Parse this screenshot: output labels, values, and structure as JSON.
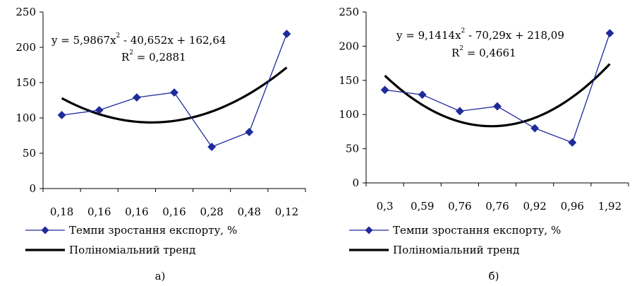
{
  "chart_data": [
    {
      "type": "line",
      "caption": "а)",
      "categories": [
        "0,18",
        "0,16",
        "0,16",
        "0,16",
        "0,28",
        "0,48",
        "0,12"
      ],
      "series": [
        {
          "name": "Темпи зростання експорту, %",
          "values": [
            104,
            111,
            129,
            136,
            59,
            80,
            219
          ],
          "color": "#1f2a9c",
          "marker": "diamond"
        },
        {
          "name": "Поліноміальний тренд",
          "trend": "polynomial",
          "coeffs": [
            5.9867,
            -40.652,
            162.64
          ],
          "color": "#000000"
        }
      ],
      "equation": {
        "line1": "y = 5,9867x",
        "exp1": "2",
        "line1b": " - 40,652x + 162,64",
        "r2_label": "R",
        "exp2": "2",
        "r2_value": " = 0,2881"
      },
      "ylim": [
        0,
        250
      ],
      "yticks": [
        "0",
        "50",
        "100",
        "150",
        "200",
        "250"
      ],
      "xlabel": "",
      "ylabel": "",
      "grid": false,
      "legend_position": "bottom"
    },
    {
      "type": "line",
      "caption": "б)",
      "categories": [
        "0,3",
        "0,59",
        "0,76",
        "0,76",
        "0,92",
        "0,96",
        "1,92"
      ],
      "series": [
        {
          "name": "Темпи зростання експорту, %",
          "values": [
            136,
            129,
            105,
            112,
            80,
            59,
            219
          ],
          "color": "#1f2a9c",
          "marker": "diamond"
        },
        {
          "name": "Поліноміальний тренд",
          "trend": "polynomial",
          "coeffs": [
            9.1414,
            -70.29,
            218.09
          ],
          "color": "#000000"
        }
      ],
      "equation": {
        "line1": "y = 9,1414x",
        "exp1": "2",
        "line1b": " - 70,29x + 218,09",
        "r2_label": "R",
        "exp2": "2",
        "r2_value": " = 0,4661"
      },
      "ylim": [
        0,
        250
      ],
      "yticks": [
        "0",
        "50",
        "100",
        "150",
        "200",
        "250"
      ],
      "xlabel": "",
      "ylabel": "",
      "grid": false,
      "legend_position": "bottom"
    }
  ]
}
